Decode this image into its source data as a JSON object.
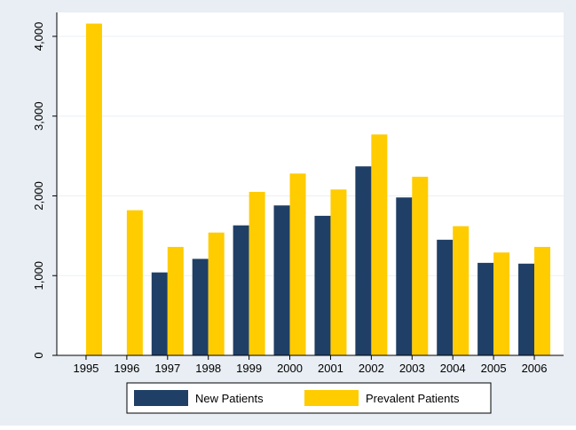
{
  "chart_data": {
    "type": "bar",
    "categories": [
      "1995",
      "1996",
      "1997",
      "1998",
      "1999",
      "2000",
      "2001",
      "2002",
      "2003",
      "2004",
      "2005",
      "2006"
    ],
    "series": [
      {
        "name": "New Patients",
        "color": "#1f3f66",
        "values": [
          0,
          0,
          1040,
          1210,
          1630,
          1880,
          1750,
          2370,
          1980,
          1450,
          1160,
          1150
        ]
      },
      {
        "name": "Prevalent Patients",
        "color": "#ffcc00",
        "values": [
          4160,
          1820,
          1360,
          1540,
          2050,
          2280,
          2080,
          2770,
          2240,
          1620,
          1290,
          1360
        ]
      }
    ],
    "yticks": [
      0,
      1000,
      2000,
      3000,
      4000
    ],
    "ytick_labels": [
      "0",
      "1,000",
      "2,000",
      "3,000",
      "4,000"
    ],
    "ylim": [
      0,
      4300
    ],
    "grid": true,
    "legend_position": "bottom",
    "title": "",
    "xlabel": "",
    "ylabel": "",
    "colors": {
      "background": "#e8eef4",
      "plot_background": "#ffffff"
    }
  }
}
